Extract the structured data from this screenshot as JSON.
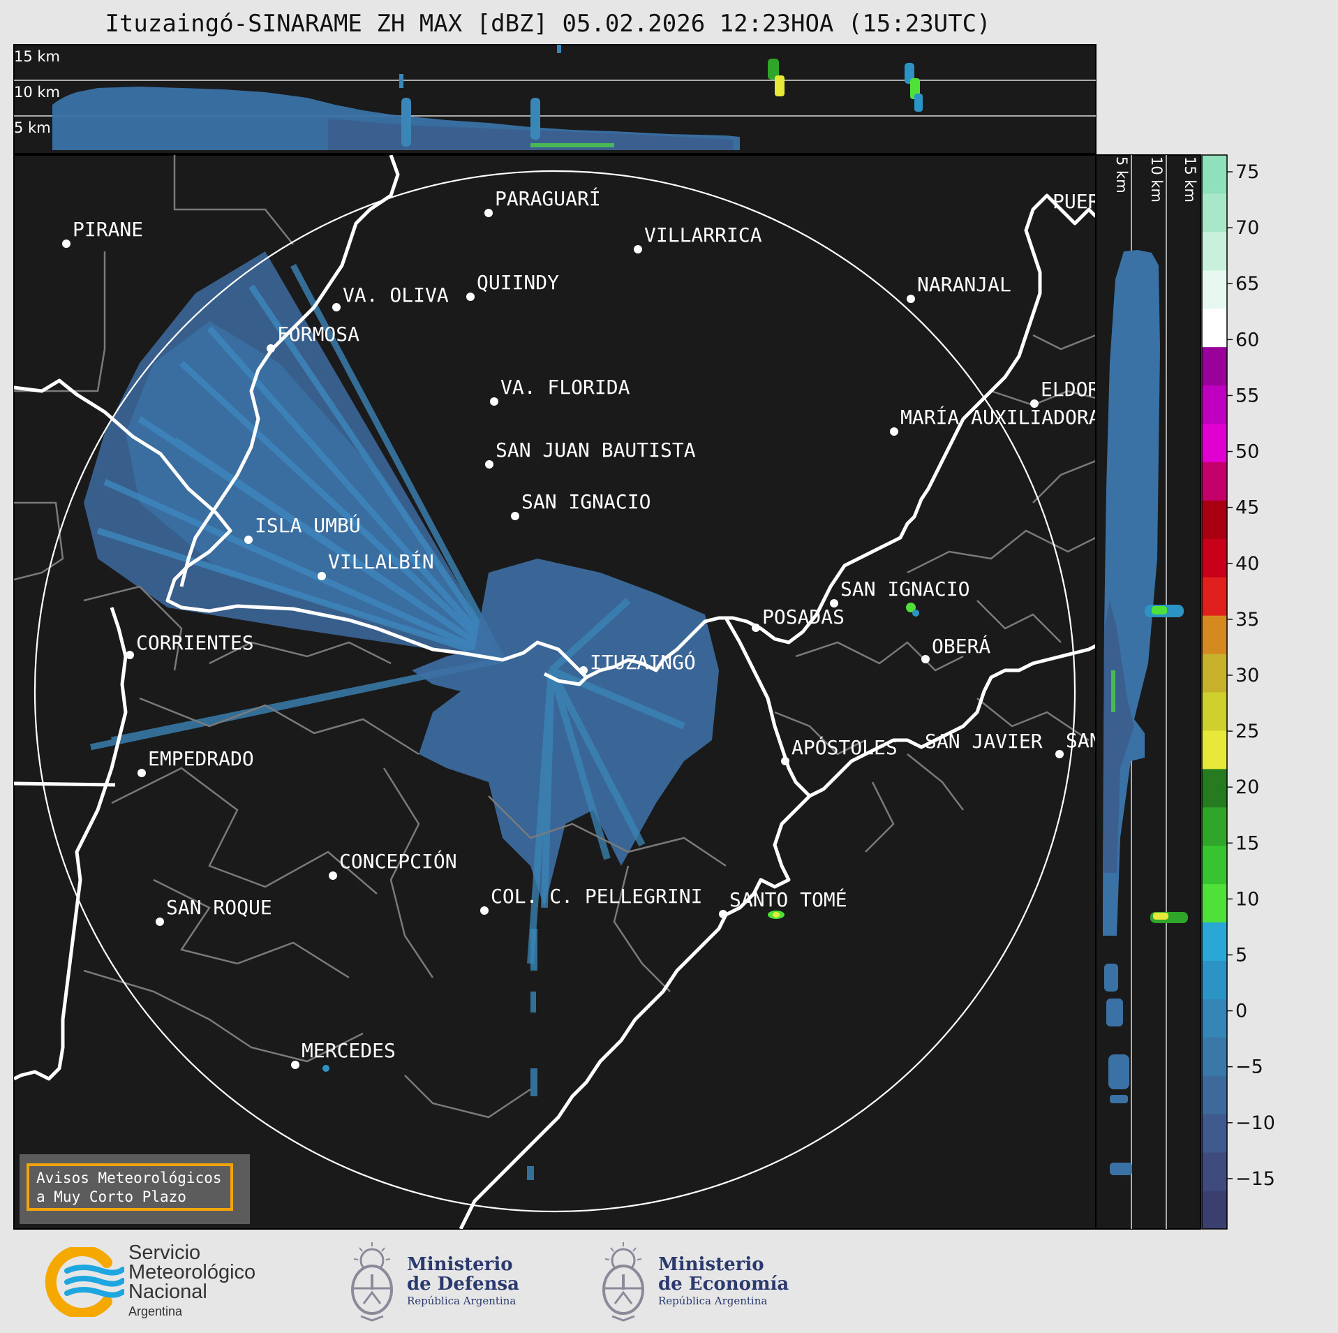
{
  "title": "Ituzaingó-SINARAME ZH MAX [dBZ] 05.02.2026 12:23HOA (15:23UTC)",
  "top_panel": {
    "km_labels": [
      "15 km",
      "10 km",
      "5 km"
    ]
  },
  "side_panel": {
    "km_labels": [
      "5 km",
      "10 km",
      "15 km"
    ]
  },
  "cities": [
    {
      "name": "PIRANE"
    },
    {
      "name": "PARAGUARÍ"
    },
    {
      "name": "VILLARRICA"
    },
    {
      "name": "QUIINDY"
    },
    {
      "name": "VA. OLIVA"
    },
    {
      "name": "FORMOSA"
    },
    {
      "name": "NARANJAL"
    },
    {
      "name": "VA. FLORIDA"
    },
    {
      "name": "ELDORADO"
    },
    {
      "name": "MARÍA AUXILIADORA"
    },
    {
      "name": "SAN JUAN BAUTISTA"
    },
    {
      "name": "SAN IGNACIO"
    },
    {
      "name": "ISLA UMBÚ"
    },
    {
      "name": "VILLALBÍN"
    },
    {
      "name": "SAN IGNACIO"
    },
    {
      "name": "POSADAS"
    },
    {
      "name": "CORRIENTES"
    },
    {
      "name": "ITUZAINGÓ"
    },
    {
      "name": "OBERÁ"
    },
    {
      "name": "APÓSTOLES"
    },
    {
      "name": "SAN JAVIER"
    },
    {
      "name": "SAN"
    },
    {
      "name": "EMPEDRADO"
    },
    {
      "name": "CONCEPCIÓN"
    },
    {
      "name": "COL. C. PELLEGRINI"
    },
    {
      "name": "SANTO TOMÉ"
    },
    {
      "name": "SAN ROQUE"
    },
    {
      "name": "MERCEDES"
    },
    {
      "name": "PUERTO"
    }
  ],
  "colorbar": {
    "unit": "dBZ",
    "ticks": [
      "75",
      "70",
      "65",
      "60",
      "55",
      "50",
      "45",
      "40",
      "35",
      "30",
      "25",
      "20",
      "15",
      "10",
      "5",
      "0",
      "−5",
      "−10",
      "−15"
    ],
    "colors": [
      "#3a3f6e",
      "#3e4b7c",
      "#3f5a8c",
      "#3d6a9a",
      "#3a78a8",
      "#3586b6",
      "#2c94c4",
      "#2aa7d6",
      "#4fe03a",
      "#38c431",
      "#2fa52a",
      "#267a1f",
      "#e8e83a",
      "#cfcf2e",
      "#c7b02a",
      "#d48a1f",
      "#e0201e",
      "#c8001a",
      "#a80010",
      "#c4006a",
      "#e000d0",
      "#c000c0",
      "#9a009a",
      "#ffffff",
      "#e6f8ef",
      "#c8f0dc",
      "#a8e8c8",
      "#90e0bc"
    ]
  },
  "warning_box": {
    "line1": "Avisos Meteorológicos",
    "line2": "a Muy Corto Plazo"
  },
  "logos": {
    "smn": {
      "line1": "Servicio",
      "line2": "Meteorológico",
      "line3": "Nacional",
      "line4": "Argentina",
      "color": "#1ea6e0",
      "accent": "#f4a800"
    },
    "defensa": {
      "line1": "Ministerio",
      "line2": "de Defensa",
      "line3": "República Argentina"
    },
    "economia": {
      "line1": "Ministerio",
      "line2": "de Economía",
      "line3": "República Argentina"
    }
  }
}
